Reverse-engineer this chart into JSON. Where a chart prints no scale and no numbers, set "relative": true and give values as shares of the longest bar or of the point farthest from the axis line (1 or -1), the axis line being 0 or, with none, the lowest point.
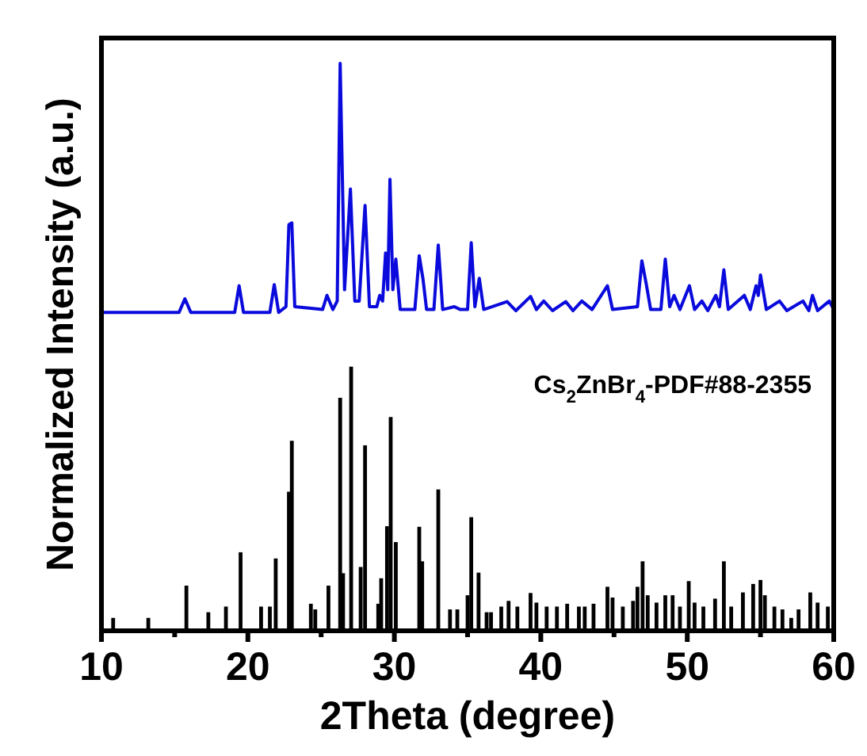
{
  "chart_data": {
    "type": "bar",
    "relative": true,
    "xlabel": "2Theta (degree)",
    "ylabel": "Normalized Intensity (a.u.)",
    "xlim": [
      10,
      60
    ],
    "xticks": [
      10,
      {
        "value": 15,
        "label": null
      },
      20,
      {
        "value": 25,
        "label": null
      },
      30,
      {
        "value": 35,
        "label": null
      },
      40,
      {
        "value": 45,
        "label": null
      },
      50,
      {
        "value": 55,
        "label": null
      },
      60
    ],
    "tick_labels": "x",
    "series": [
      {
        "type": "line",
        "color": "#0a0adc",
        "x": [
          10.0,
          15.3,
          15.7,
          16.1,
          19.1,
          19.4,
          19.7,
          21.5,
          21.8,
          22.1,
          22.6,
          22.8,
          23.0,
          23.2,
          25.1,
          25.4,
          25.8,
          26.1,
          26.3,
          26.6,
          27.0,
          27.3,
          27.6,
          28.0,
          28.3,
          28.8,
          29.0,
          29.2,
          29.4,
          29.55,
          29.7,
          29.9,
          30.1,
          30.4,
          31.4,
          31.7,
          31.95,
          32.2,
          32.7,
          33.0,
          33.3,
          34.1,
          34.5,
          35.0,
          35.25,
          35.5,
          35.8,
          36.1,
          37.7,
          38.3,
          39.3,
          39.7,
          40.2,
          40.8,
          41.7,
          42.2,
          42.8,
          43.5,
          44.55,
          44.9,
          46.6,
          46.9,
          47.2,
          47.5,
          48.2,
          48.5,
          48.8,
          49.1,
          49.5,
          50.15,
          50.5,
          51.0,
          51.4,
          51.95,
          52.2,
          52.5,
          52.8,
          53.9,
          54.3,
          54.7,
          54.85,
          55.0,
          55.4,
          56.3,
          56.8,
          57.9,
          58.3,
          58.55,
          58.9,
          59.7,
          60.0
        ],
        "values": [
          0.56,
          0.56,
          0.584,
          0.56,
          0.56,
          0.607,
          0.56,
          0.56,
          0.609,
          0.56,
          0.57,
          0.715,
          0.718,
          0.57,
          0.565,
          0.59,
          0.565,
          0.58,
          1.0,
          0.6,
          0.778,
          0.58,
          0.58,
          0.749,
          0.57,
          0.57,
          0.59,
          0.58,
          0.665,
          0.6,
          0.795,
          0.6,
          0.654,
          0.565,
          0.565,
          0.66,
          0.62,
          0.565,
          0.565,
          0.679,
          0.565,
          0.57,
          0.565,
          0.565,
          0.683,
          0.57,
          0.62,
          0.565,
          0.579,
          0.563,
          0.588,
          0.565,
          0.58,
          0.563,
          0.579,
          0.563,
          0.58,
          0.565,
          0.607,
          0.565,
          0.57,
          0.651,
          0.61,
          0.565,
          0.565,
          0.654,
          0.57,
          0.59,
          0.565,
          0.607,
          0.565,
          0.58,
          0.563,
          0.59,
          0.57,
          0.635,
          0.565,
          0.59,
          0.565,
          0.607,
          0.59,
          0.626,
          0.565,
          0.58,
          0.563,
          0.58,
          0.563,
          0.59,
          0.563,
          0.58,
          0.565
        ]
      },
      {
        "name": "Cs$_{2}$ZnBr$_{4}$-PDF#88-2355",
        "color": "#000000",
        "x": [
          10.8,
          13.2,
          15.8,
          17.3,
          18.5,
          19.5,
          20.9,
          21.5,
          21.9,
          22.8,
          23.0,
          24.3,
          24.6,
          25.5,
          26.3,
          26.5,
          27.05,
          27.7,
          28.0,
          28.9,
          29.1,
          29.5,
          29.75,
          30.1,
          31.7,
          31.9,
          33.0,
          33.8,
          34.3,
          35.0,
          35.25,
          35.75,
          36.3,
          36.6,
          37.3,
          37.8,
          38.4,
          39.3,
          39.7,
          40.4,
          41.1,
          41.8,
          42.6,
          43.0,
          43.6,
          44.55,
          44.9,
          45.6,
          46.3,
          46.6,
          46.95,
          47.3,
          47.9,
          48.5,
          49.0,
          49.5,
          50.1,
          50.5,
          51.1,
          51.9,
          52.5,
          53.0,
          53.8,
          54.5,
          55.0,
          55.3,
          55.95,
          56.5,
          57.1,
          57.6,
          58.4,
          58.9,
          59.6
        ],
        "values": [
          0.02,
          0.02,
          0.077,
          0.03,
          0.04,
          0.136,
          0.04,
          0.04,
          0.125,
          0.243,
          0.333,
          0.045,
          0.035,
          0.077,
          0.409,
          0.099,
          0.464,
          0.11,
          0.325,
          0.045,
          0.09,
          0.182,
          0.375,
          0.154,
          0.181,
          0.12,
          0.247,
          0.035,
          0.035,
          0.06,
          0.198,
          0.1,
          0.03,
          0.03,
          0.04,
          0.05,
          0.04,
          0.064,
          0.047,
          0.04,
          0.04,
          0.045,
          0.04,
          0.04,
          0.045,
          0.075,
          0.056,
          0.04,
          0.05,
          0.075,
          0.12,
          0.06,
          0.047,
          0.06,
          0.06,
          0.04,
          0.085,
          0.047,
          0.04,
          0.054,
          0.12,
          0.04,
          0.065,
          0.08,
          0.087,
          0.06,
          0.04,
          0.035,
          0.02,
          0.035,
          0.065,
          0.047,
          0.04
        ]
      }
    ]
  }
}
